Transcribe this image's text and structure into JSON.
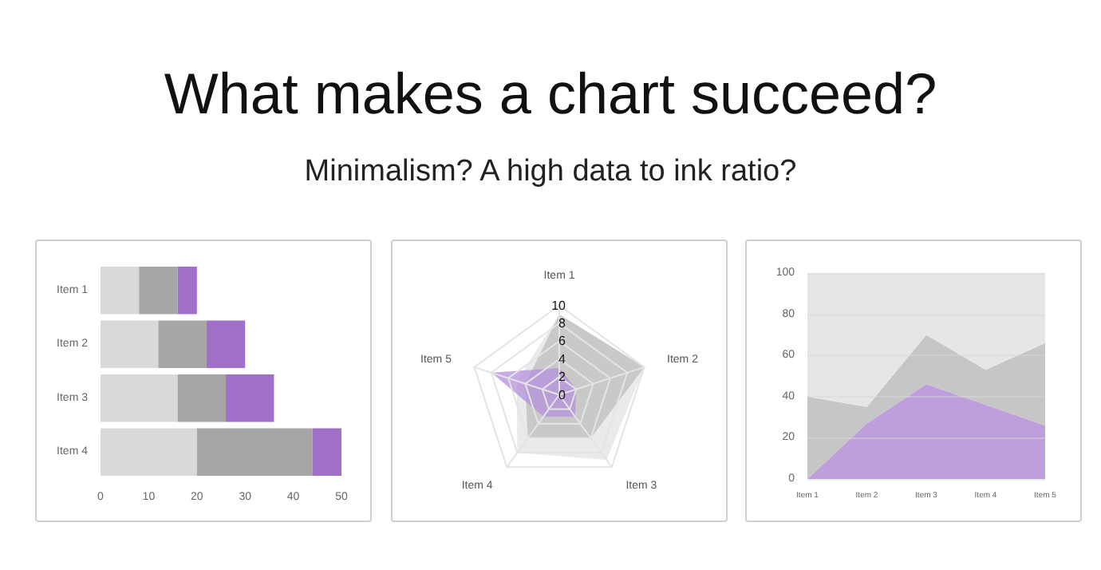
{
  "chart_data": [
    {
      "type": "bar",
      "title": "What makes a chart succeed?",
      "subtitle": "Minimalism? A high data to ink ratio?",
      "orientation": "horizontal",
      "stacked": true,
      "categories": [
        "Item 1",
        "Item 2",
        "Item 3",
        "Item 4"
      ],
      "xlim": [
        0,
        50
      ],
      "xticks": [
        0,
        10,
        20,
        30,
        40,
        50
      ],
      "series": [
        {
          "color": "#d9d9db",
          "values": [
            8,
            12,
            16,
            20
          ]
        },
        {
          "color": "#a6a6a6",
          "values": [
            8,
            10,
            10,
            24
          ]
        },
        {
          "color": "#a070c8",
          "values": [
            4,
            8,
            10,
            6
          ]
        }
      ]
    },
    {
      "type": "radar",
      "categories": [
        "Item 1",
        "Item 2",
        "Item 3",
        "Item 4",
        "Item 5"
      ],
      "ylim": [
        0,
        10
      ],
      "yticks": [
        0,
        2,
        4,
        6,
        8,
        10
      ],
      "series": [
        {
          "color": "#e3e3e3",
          "values": [
            9,
            10,
            9,
            8,
            5
          ]
        },
        {
          "color": "#bdbdbd",
          "values": [
            9,
            10,
            6,
            6,
            4
          ]
        },
        {
          "color": "#b48fdc",
          "values": [
            3,
            2,
            3,
            3,
            8
          ]
        }
      ]
    },
    {
      "type": "area",
      "categories": [
        "Item 1",
        "Item 2",
        "Item 3",
        "Item 4",
        "Item 5"
      ],
      "ylim": [
        0,
        100
      ],
      "yticks": [
        0,
        20,
        40,
        60,
        80,
        100
      ],
      "grid": "y",
      "stacked": true,
      "series": [
        {
          "color": "#bf9fdb",
          "values": [
            0,
            27,
            46,
            36,
            26
          ]
        },
        {
          "color": "#c6c6c6",
          "values": [
            40,
            8,
            24,
            17,
            40
          ]
        },
        {
          "color": "#e6e6e8",
          "values": [
            60,
            65,
            30,
            47,
            34
          ]
        }
      ]
    }
  ]
}
